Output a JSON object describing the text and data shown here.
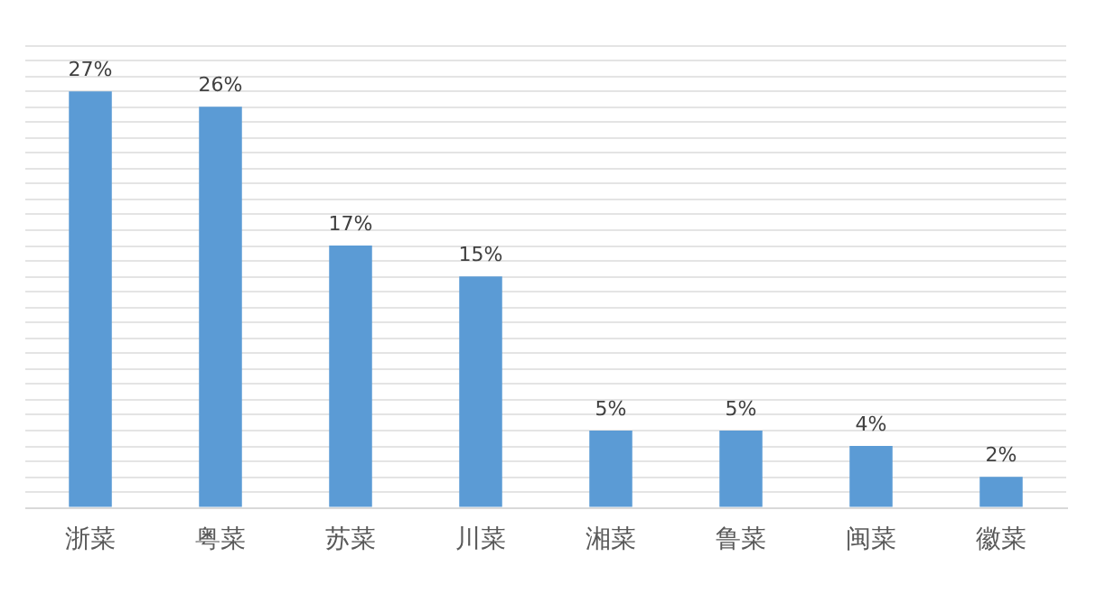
{
  "chart_data": {
    "type": "bar",
    "categories": [
      "浙菜",
      "粤菜",
      "苏菜",
      "川菜",
      "湘菜",
      "鲁菜",
      "闽菜",
      "徽菜"
    ],
    "values": [
      27,
      26,
      17,
      15,
      5,
      5,
      4,
      2
    ],
    "value_labels": [
      "27%",
      "26%",
      "17%",
      "15%",
      "5%",
      "5%",
      "4%",
      "2%"
    ],
    "color": "#5b9bd5",
    "ylim": [
      0,
      30
    ],
    "yticks": [
      {
        "value": 0,
        "label": null
      },
      {
        "value": 1,
        "label": null
      },
      {
        "value": 2,
        "label": null
      },
      {
        "value": 3,
        "label": null
      },
      {
        "value": 4,
        "label": null
      },
      {
        "value": 5,
        "label": null
      },
      {
        "value": 6,
        "label": null
      },
      {
        "value": 7,
        "label": null
      },
      {
        "value": 8,
        "label": null
      },
      {
        "value": 9,
        "label": null
      },
      {
        "value": 10,
        "label": null
      },
      {
        "value": 11,
        "label": null
      },
      {
        "value": 12,
        "label": null
      },
      {
        "value": 13,
        "label": null
      },
      {
        "value": 14,
        "label": null
      },
      {
        "value": 15,
        "label": null
      },
      {
        "value": 16,
        "label": null
      },
      {
        "value": 17,
        "label": null
      },
      {
        "value": 18,
        "label": null
      },
      {
        "value": 19,
        "label": null
      },
      {
        "value": 20,
        "label": null
      },
      {
        "value": 21,
        "label": null
      },
      {
        "value": 22,
        "label": null
      },
      {
        "value": 23,
        "label": null
      },
      {
        "value": 24,
        "label": null
      },
      {
        "value": 25,
        "label": null
      },
      {
        "value": 26,
        "label": null
      },
      {
        "value": 27,
        "label": null
      },
      {
        "value": 28,
        "label": null
      },
      {
        "value": 29,
        "label": null
      },
      {
        "value": 30,
        "label": null
      }
    ],
    "grid": "y",
    "tick_labels": "x",
    "legend": false
  }
}
